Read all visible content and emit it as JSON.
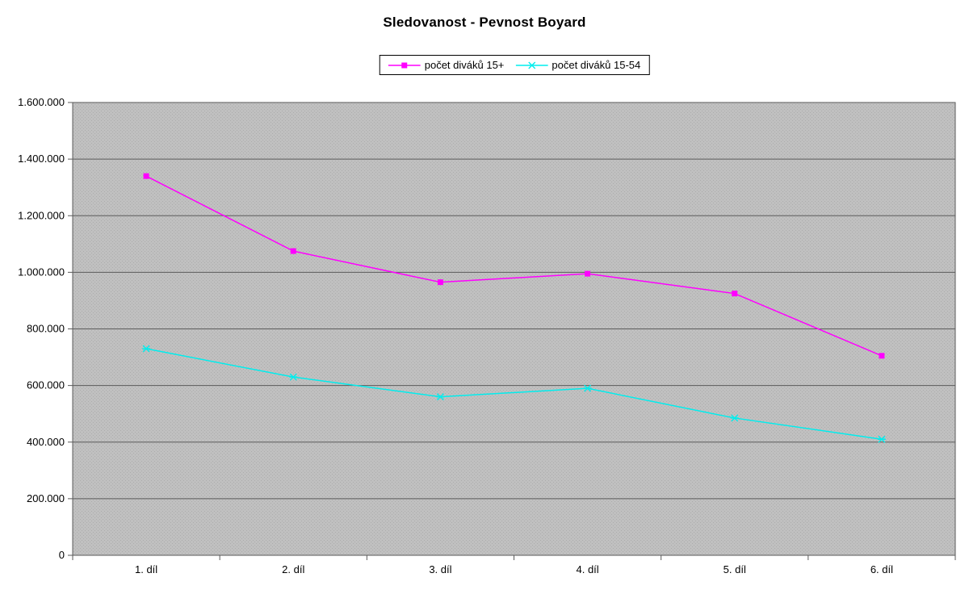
{
  "chart_data": {
    "type": "line",
    "title": "Sledovanost - Pevnost Boyard",
    "categories": [
      "1. díl",
      "2. díl",
      "3. díl",
      "4. díl",
      "5. díl",
      "6. díl"
    ],
    "series": [
      {
        "name": "počet diváků 15+",
        "color": "#FF00FF",
        "marker": "square",
        "values": [
          1340000,
          1075000,
          965000,
          995000,
          925000,
          705000
        ]
      },
      {
        "name": "počet diváků 15-54",
        "color": "#00EDED",
        "marker": "x",
        "values": [
          730000,
          630000,
          560000,
          590000,
          485000,
          410000
        ]
      }
    ],
    "ylim": [
      0,
      1600000
    ],
    "ytick_step": 200000,
    "ytick_labels": [
      "0",
      "200.000",
      "400.000",
      "600.000",
      "800.000",
      "1.000.000",
      "1.200.000",
      "1.400.000",
      "1.600.000"
    ],
    "grid": true,
    "legend_position": "top-center",
    "plot_bg_color": "#C0C0C0",
    "plot_bg_dot_color": "#ACACAC",
    "grid_color": "#5A5A5A",
    "axis_text_color": "#000000",
    "number_format": "dot-thousands"
  }
}
